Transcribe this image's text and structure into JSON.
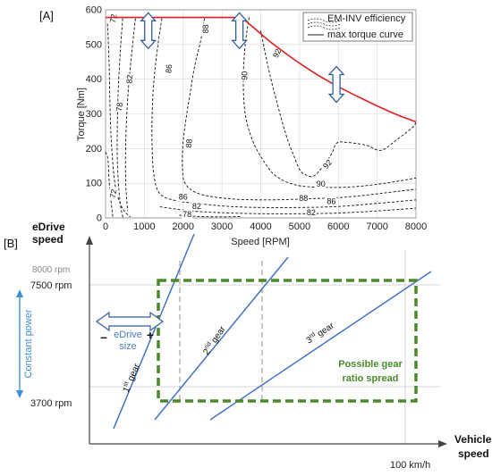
{
  "chart_data": [
    {
      "type": "line",
      "panel_label": "[A]",
      "xlabel": "Speed [RPM]",
      "ylabel": "Torque [Nm]",
      "xlim": [
        0,
        8000
      ],
      "ylim": [
        0,
        600
      ],
      "xticks": [
        "0",
        "1000",
        "2000",
        "3000",
        "4000",
        "5000",
        "6000",
        "7000",
        "8000"
      ],
      "yticks": [
        "0",
        "100",
        "200",
        "300",
        "400",
        "500",
        "600"
      ],
      "grid": true,
      "legend_position": "top-right",
      "legend": [
        "EM-INV efficiency",
        "max torque curve"
      ],
      "series": [
        {
          "name": "max torque curve",
          "color": "#e02020",
          "x": [
            0,
            3500,
            3800,
            4200,
            4600,
            5000,
            5500,
            6000,
            6500,
            7000,
            7500,
            8000
          ],
          "y": [
            578,
            578,
            550,
            512,
            478,
            446,
            410,
            378,
            350,
            323,
            298,
            277
          ]
        }
      ],
      "contours": [
        {
          "label": "72",
          "x": [
            50,
            90,
            120,
            160,
            240,
            350,
            480,
            640
          ],
          "y": [
            560,
            450,
            300,
            200,
            100,
            50,
            20,
            3
          ]
        },
        {
          "label": "72",
          "x": [
            0,
            60,
            90,
            130,
            190
          ],
          "y": [
            190,
            170,
            110,
            60,
            0
          ]
        },
        {
          "label": "78",
          "x": [
            440,
            380,
            320,
            300,
            320,
            380,
            450
          ],
          "y": [
            575,
            480,
            350,
            210,
            120,
            40,
            0
          ]
        },
        {
          "label": "78",
          "x": [
            1900,
            2400,
            3000,
            3500
          ],
          "y": [
            8,
            4,
            3,
            4
          ]
        },
        {
          "label": "82",
          "x": [
            770,
            680,
            580,
            520,
            520,
            570
          ],
          "y": [
            575,
            480,
            360,
            220,
            100,
            20
          ]
        },
        {
          "label": "82",
          "x": [
            1400,
            2200,
            3000,
            4000,
            5000,
            6000,
            7000,
            8000
          ],
          "y": [
            32,
            20,
            15,
            12,
            12,
            14,
            20,
            28
          ]
        },
        {
          "label": "86",
          "x": [
            1450,
            1350,
            1250,
            1200,
            1200,
            1250,
            1400,
            1800,
            2500,
            3200,
            4000,
            5000,
            6000,
            7000,
            8000
          ],
          "y": [
            575,
            500,
            400,
            300,
            200,
            120,
            70,
            50,
            40,
            33,
            30,
            30,
            33,
            42,
            52
          ]
        },
        {
          "label": "88",
          "x": [
            2550,
            2450,
            2300,
            2180,
            2080,
            2000,
            1980,
            2050,
            2400,
            3200,
            4200,
            5200,
            6200,
            7200,
            8000
          ],
          "y": [
            575,
            510,
            440,
            360,
            290,
            220,
            150,
            100,
            70,
            55,
            52,
            55,
            60,
            72,
            83
          ]
        },
        {
          "label": "90",
          "x": [
            3700,
            3600,
            3550,
            3600,
            3800,
            4100,
            4400,
            4900,
            5600,
            6400,
            7200,
            8000
          ],
          "y": [
            578,
            500,
            400,
            300,
            220,
            160,
            120,
            95,
            88,
            90,
            100,
            115
          ]
        },
        {
          "label": "92",
          "x": [
            4000,
            4200,
            4400,
            4650,
            4850,
            5000,
            5150,
            5400,
            5800,
            5950,
            6200,
            6700,
            7100,
            7500,
            7900,
            8000
          ],
          "y": [
            540,
            430,
            340,
            240,
            180,
            140,
            125,
            123,
            180,
            215,
            218,
            210,
            195,
            225,
            260,
            275
          ]
        }
      ],
      "contour_labels": [
        {
          "text": "72",
          "x": 200,
          "y": 575,
          "rot": -80
        },
        {
          "text": "82",
          "x": 620,
          "y": 400,
          "rot": -85
        },
        {
          "text": "78",
          "x": 360,
          "y": 320,
          "rot": -85
        },
        {
          "text": "72",
          "x": 200,
          "y": 70,
          "rot": -80
        },
        {
          "text": "86",
          "x": 1630,
          "y": 430,
          "rot": -85
        },
        {
          "text": "88",
          "x": 2580,
          "y": 545,
          "rot": -90
        },
        {
          "text": "88",
          "x": 2150,
          "y": 215,
          "rot": -85
        },
        {
          "text": "90",
          "x": 3590,
          "y": 410,
          "rot": -90
        },
        {
          "text": "92",
          "x": 4420,
          "y": 475,
          "rot": -65
        },
        {
          "text": "92",
          "x": 5720,
          "y": 155,
          "rot": -50
        },
        {
          "text": "90",
          "x": 5550,
          "y": 98,
          "rot": 0
        },
        {
          "text": "88",
          "x": 5100,
          "y": 57,
          "rot": 0
        },
        {
          "text": "86",
          "x": 5820,
          "y": 47,
          "rot": 0
        },
        {
          "text": "86",
          "x": 2000,
          "y": 60,
          "rot": 0
        },
        {
          "text": "82",
          "x": 2350,
          "y": 34,
          "rot": 0
        },
        {
          "text": "82",
          "x": 5300,
          "y": 15,
          "rot": 0
        },
        {
          "text": "78",
          "x": 2100,
          "y": 10,
          "rot": 0
        }
      ],
      "arrows_speed_rpm": [
        1100,
        3450,
        5950
      ],
      "arrows_torque_center_nm": [
        540,
        540,
        385
      ]
    },
    {
      "type": "line",
      "panel_label": "[B]",
      "ylabel": "eDrive speed",
      "xlabel": "Vehicle speed",
      "y_markers": {
        "max": "8000 rpm",
        "upper": "7500 rpm",
        "lower": "3700 rpm",
        "const_power": "Constant power"
      },
      "x_marker": "100 km/h",
      "gears": [
        {
          "label": "1",
          "sup": "st",
          "suffix": " gear"
        },
        {
          "label": "2",
          "sup": "nd",
          "suffix": " gear"
        },
        {
          "label": "3",
          "sup": "rd",
          "suffix": " gear"
        }
      ],
      "edrive_size": "eDrive size",
      "minus": "–",
      "plus": "+",
      "spread_label_line1": "Possible gear",
      "spread_label_line2": "ratio spread",
      "colors": {
        "gear": "#4472c4",
        "box": "#4a8a2a",
        "blue_text": "#4a7ebf",
        "const_power": "#3b8fd9",
        "grid": "#c8c8c8",
        "dash": "#999999"
      }
    }
  ]
}
